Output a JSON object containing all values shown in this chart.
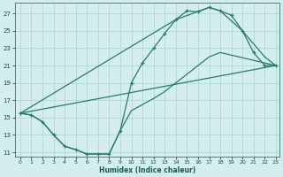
{
  "xlabel": "Humidex (Indice chaleur)",
  "bg_color": "#d4eeed",
  "grid_color": "#aed4d0",
  "line_color": "#2a7a6a",
  "xlim": [
    -0.5,
    23.3
  ],
  "ylim": [
    10.5,
    28.2
  ],
  "xticks": [
    0,
    1,
    2,
    3,
    4,
    5,
    6,
    7,
    8,
    9,
    10,
    11,
    12,
    13,
    14,
    15,
    16,
    17,
    18,
    19,
    20,
    21,
    22,
    23
  ],
  "yticks": [
    11,
    13,
    15,
    17,
    19,
    21,
    23,
    25,
    27
  ],
  "curve1_x": [
    0,
    1,
    2,
    3,
    4,
    5,
    6,
    7,
    8,
    9,
    10,
    11,
    12,
    13,
    14,
    15,
    16,
    17,
    18,
    19,
    20,
    21,
    22,
    23
  ],
  "curve1_y": [
    15.5,
    15.3,
    14.5,
    13.0,
    11.7,
    11.3,
    10.8,
    10.8,
    10.8,
    13.5,
    19.0,
    21.3,
    23.0,
    24.7,
    26.3,
    27.3,
    27.2,
    27.7,
    27.3,
    26.8,
    25.0,
    22.5,
    21.0,
    21.0
  ],
  "curve2_x": [
    0,
    1,
    2,
    3,
    4,
    5,
    6,
    7,
    8,
    9,
    10,
    11,
    12,
    13,
    14,
    15,
    16,
    17,
    18,
    23
  ],
  "curve2_y": [
    15.5,
    15.3,
    14.5,
    13.0,
    11.7,
    11.3,
    10.8,
    10.8,
    10.8,
    13.5,
    15.8,
    16.5,
    17.2,
    18.0,
    19.0,
    20.0,
    21.0,
    22.0,
    22.5,
    21.0
  ],
  "line3_x": [
    0,
    23
  ],
  "line3_y": [
    15.5,
    21.0
  ],
  "line4_x": [
    0,
    14,
    17,
    18,
    20,
    22,
    23
  ],
  "line4_y": [
    15.5,
    26.3,
    27.7,
    27.3,
    25.0,
    22.0,
    21.0
  ]
}
